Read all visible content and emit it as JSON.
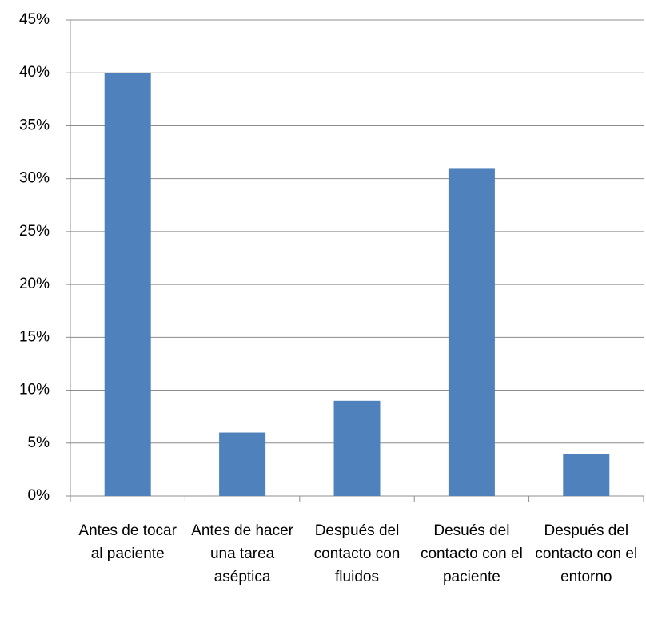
{
  "chart_data": {
    "type": "bar",
    "categories": [
      "Antes de tocar al paciente",
      "Antes de hacer una tarea aséptica",
      "Después del contacto con fluidos",
      "Desués del contacto con el paciente",
      "Después del contacto con el entorno"
    ],
    "values": [
      40,
      6,
      9,
      31,
      4
    ],
    "color": "#4f81bd",
    "ylim": [
      0,
      45
    ],
    "yticks": [
      {
        "value": 0,
        "label": "0%"
      },
      {
        "value": 5,
        "label": "5%"
      },
      {
        "value": 10,
        "label": "10%"
      },
      {
        "value": 15,
        "label": "15%"
      },
      {
        "value": 20,
        "label": "20%"
      },
      {
        "value": 25,
        "label": "25%"
      },
      {
        "value": 30,
        "label": "30%"
      },
      {
        "value": 35,
        "label": "35%"
      },
      {
        "value": 40,
        "label": "40%"
      },
      {
        "value": 45,
        "label": "45%"
      }
    ],
    "grid": true
  }
}
